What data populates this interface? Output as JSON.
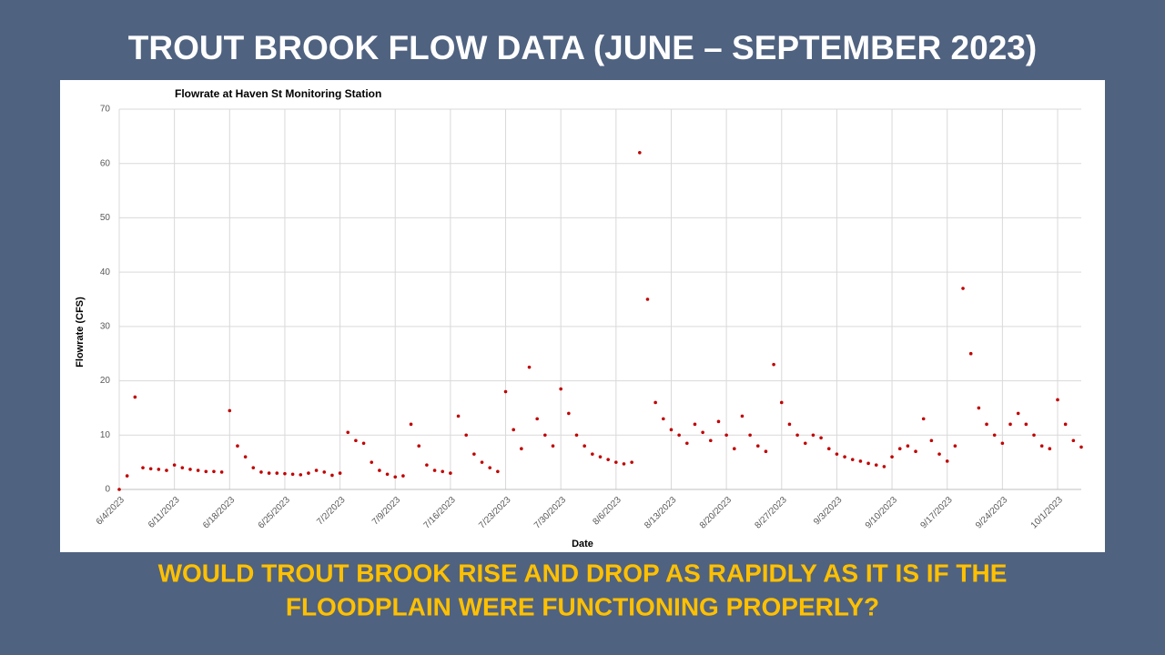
{
  "slide": {
    "title": "TROUT BROOK FLOW DATA (JUNE – SEPTEMBER 2023)",
    "question": [
      "WOULD TROUT BROOK RISE AND DROP AS RAPIDLY AS IT IS IF THE",
      "FLOODPLAIN WERE FUNCTIONING PROPERLY?"
    ]
  },
  "chart_data": {
    "type": "scatter",
    "title": "Flowrate at Haven St Monitoring Station",
    "x_label": "Date",
    "y_label": "Flowrate (CFS)",
    "color": "#c00000",
    "grid": true,
    "xlim": [
      "2023-06-04",
      "2023-10-04"
    ],
    "ylim": [
      0,
      70
    ],
    "yticks": [
      0,
      10,
      20,
      30,
      40,
      50,
      60,
      70
    ],
    "xticks": [
      {
        "value": "2023-06-04",
        "label": "6/4/2023"
      },
      {
        "value": "2023-06-11",
        "label": "6/11/2023"
      },
      {
        "value": "2023-06-18",
        "label": "6/18/2023"
      },
      {
        "value": "2023-06-25",
        "label": "6/25/2023"
      },
      {
        "value": "2023-07-02",
        "label": "7/2/2023"
      },
      {
        "value": "2023-07-09",
        "label": "7/9/2023"
      },
      {
        "value": "2023-07-16",
        "label": "7/16/2023"
      },
      {
        "value": "2023-07-23",
        "label": "7/23/2023"
      },
      {
        "value": "2023-07-30",
        "label": "7/30/2023"
      },
      {
        "value": "2023-08-06",
        "label": "8/6/2023"
      },
      {
        "value": "2023-08-13",
        "label": "8/13/2023"
      },
      {
        "value": "2023-08-20",
        "label": "8/20/2023"
      },
      {
        "value": "2023-08-27",
        "label": "8/27/2023"
      },
      {
        "value": "2023-09-03",
        "label": "9/3/2023"
      },
      {
        "value": "2023-09-10",
        "label": "9/10/2023"
      },
      {
        "value": "2023-09-17",
        "label": "9/17/2023"
      },
      {
        "value": "2023-09-24",
        "label": "9/24/2023"
      },
      {
        "value": "2023-10-01",
        "label": "10/1/2023"
      }
    ],
    "x": [
      "2023-06-04",
      "2023-06-05",
      "2023-06-06",
      "2023-06-07",
      "2023-06-08",
      "2023-06-09",
      "2023-06-10",
      "2023-06-11",
      "2023-06-12",
      "2023-06-13",
      "2023-06-14",
      "2023-06-15",
      "2023-06-16",
      "2023-06-17",
      "2023-06-18",
      "2023-06-19",
      "2023-06-20",
      "2023-06-21",
      "2023-06-22",
      "2023-06-23",
      "2023-06-24",
      "2023-06-25",
      "2023-06-26",
      "2023-06-27",
      "2023-06-28",
      "2023-06-29",
      "2023-06-30",
      "2023-07-01",
      "2023-07-02",
      "2023-07-03",
      "2023-07-04",
      "2023-07-05",
      "2023-07-06",
      "2023-07-07",
      "2023-07-08",
      "2023-07-09",
      "2023-07-10",
      "2023-07-11",
      "2023-07-12",
      "2023-07-13",
      "2023-07-14",
      "2023-07-15",
      "2023-07-16",
      "2023-07-17",
      "2023-07-18",
      "2023-07-19",
      "2023-07-20",
      "2023-07-21",
      "2023-07-22",
      "2023-07-23",
      "2023-07-24",
      "2023-07-25",
      "2023-07-26",
      "2023-07-27",
      "2023-07-28",
      "2023-07-29",
      "2023-07-30",
      "2023-07-31",
      "2023-08-01",
      "2023-08-02",
      "2023-08-03",
      "2023-08-04",
      "2023-08-05",
      "2023-08-06",
      "2023-08-07",
      "2023-08-08",
      "2023-08-09",
      "2023-08-10",
      "2023-08-11",
      "2023-08-12",
      "2023-08-13",
      "2023-08-14",
      "2023-08-15",
      "2023-08-16",
      "2023-08-17",
      "2023-08-18",
      "2023-08-19",
      "2023-08-20",
      "2023-08-21",
      "2023-08-22",
      "2023-08-23",
      "2023-08-24",
      "2023-08-25",
      "2023-08-26",
      "2023-08-27",
      "2023-08-28",
      "2023-08-29",
      "2023-08-30",
      "2023-08-31",
      "2023-09-01",
      "2023-09-02",
      "2023-09-03",
      "2023-09-04",
      "2023-09-05",
      "2023-09-06",
      "2023-09-07",
      "2023-09-08",
      "2023-09-09",
      "2023-09-10",
      "2023-09-11",
      "2023-09-12",
      "2023-09-13",
      "2023-09-14",
      "2023-09-15",
      "2023-09-16",
      "2023-09-17",
      "2023-09-18",
      "2023-09-19",
      "2023-09-20",
      "2023-09-21",
      "2023-09-22",
      "2023-09-23",
      "2023-09-24",
      "2023-09-25",
      "2023-09-26",
      "2023-09-27",
      "2023-09-28",
      "2023-09-29",
      "2023-09-30",
      "2023-10-01",
      "2023-10-02",
      "2023-10-03",
      "2023-10-04"
    ],
    "values": [
      0,
      2.5,
      17,
      4,
      3.8,
      3.7,
      3.5,
      4.5,
      4,
      3.7,
      3.5,
      3.3,
      3.3,
      3.2,
      14.5,
      8,
      6,
      4,
      3.2,
      3,
      3,
      2.9,
      2.8,
      2.7,
      3,
      3.5,
      3.2,
      2.6,
      3,
      10.5,
      9,
      8.5,
      5,
      3.5,
      2.8,
      2.3,
      2.5,
      12,
      8,
      4.5,
      3.5,
      3.3,
      3,
      13.5,
      10,
      6.5,
      5,
      4,
      3.3,
      18,
      11,
      7.5,
      22.5,
      13,
      10,
      8,
      18.5,
      14,
      10,
      8,
      6.5,
      6,
      5.5,
      5,
      4.7,
      5,
      62,
      35,
      16,
      13,
      11,
      10,
      8.5,
      12,
      10.5,
      9,
      12.5,
      10,
      7.5,
      13.5,
      10,
      8,
      7,
      23,
      16,
      12,
      10,
      8.5,
      10,
      9.5,
      7.5,
      6.5,
      6,
      5.5,
      5.2,
      4.8,
      4.5,
      4.2,
      6,
      7.5,
      8,
      7,
      13,
      9,
      6.5,
      5.2,
      8,
      37,
      25,
      15,
      12,
      10,
      8.5,
      12,
      14,
      12,
      10,
      8,
      7.5,
      16.5,
      12,
      9,
      7.8
    ]
  }
}
